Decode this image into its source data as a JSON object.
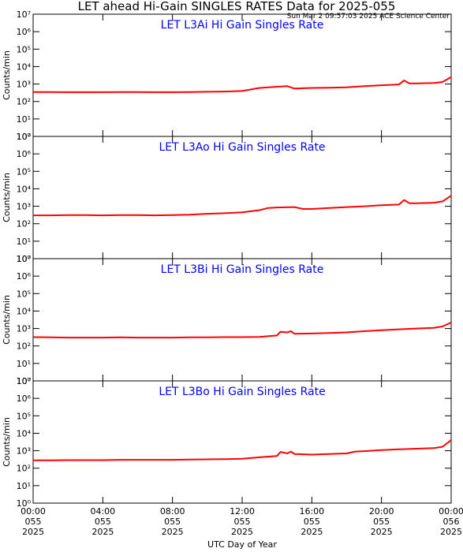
{
  "header": {
    "title": "LET ahead Hi-Gain SINGLES RATES Data for 2025-055",
    "subtitle": "Sun Mar  2 09:57:03 2025 ACE Science Center"
  },
  "chart_data": [
    {
      "type": "line",
      "title": "LET L3Ai Hi Gain Singles Rate",
      "ylabel": "Counts/min",
      "color": "#ff0000",
      "log_y": true,
      "ylim": [
        1,
        10000000
      ],
      "yticks": [
        {
          "value": 1,
          "label": "10⁰"
        },
        {
          "value": 10,
          "label": "10¹"
        },
        {
          "value": 100,
          "label": "10²"
        },
        {
          "value": 1000,
          "label": "10³"
        },
        {
          "value": 10000,
          "label": "10⁴"
        },
        {
          "value": 100000,
          "label": "10⁵"
        },
        {
          "value": 1000000,
          "label": "10⁶"
        },
        {
          "value": 10000000,
          "label": "10⁷"
        }
      ],
      "x": [
        0,
        1,
        2,
        3,
        4,
        5,
        6,
        7,
        8,
        9,
        10,
        11,
        12,
        13,
        14,
        14.6,
        15,
        16,
        17,
        18,
        19,
        20,
        21,
        21.3,
        21.6,
        22,
        23,
        23.5,
        24
      ],
      "values": [
        350,
        350,
        340,
        340,
        340,
        350,
        350,
        340,
        340,
        350,
        360,
        370,
        400,
        600,
        700,
        750,
        550,
        600,
        620,
        650,
        750,
        850,
        950,
        1600,
        1100,
        1100,
        1150,
        1300,
        2500
      ]
    },
    {
      "type": "line",
      "title": "LET L3Ao Hi Gain Singles Rate",
      "ylabel": "Counts/min",
      "color": "#ff0000",
      "log_y": true,
      "ylim": [
        1,
        10000000
      ],
      "yticks": [
        {
          "value": 1,
          "label": "10⁰"
        },
        {
          "value": 10,
          "label": "10¹"
        },
        {
          "value": 100,
          "label": "10²"
        },
        {
          "value": 1000,
          "label": "10³"
        },
        {
          "value": 10000,
          "label": "10⁴"
        },
        {
          "value": 100000,
          "label": "10⁵"
        },
        {
          "value": 1000000,
          "label": "10⁶"
        },
        {
          "value": 10000000,
          "label": "10⁷"
        }
      ],
      "x": [
        0,
        1,
        2,
        3,
        4,
        5,
        6,
        7,
        8,
        9,
        10,
        11,
        12,
        13,
        13.5,
        14,
        15,
        15.5,
        16,
        17,
        18,
        19,
        20,
        21,
        21.3,
        21.6,
        22,
        23,
        23.5,
        24
      ],
      "values": [
        300,
        300,
        310,
        310,
        300,
        310,
        310,
        300,
        310,
        330,
        370,
        400,
        450,
        600,
        800,
        850,
        900,
        700,
        700,
        800,
        900,
        1000,
        1150,
        1250,
        2300,
        1500,
        1500,
        1600,
        1900,
        4000
      ]
    },
    {
      "type": "line",
      "title": "LET L3Bi Hi Gain Singles Rate",
      "ylabel": "Counts/min",
      "color": "#ff0000",
      "log_y": true,
      "ylim": [
        1,
        10000000
      ],
      "yticks": [
        {
          "value": 1,
          "label": "10⁰"
        },
        {
          "value": 10,
          "label": "10¹"
        },
        {
          "value": 100,
          "label": "10²"
        },
        {
          "value": 1000,
          "label": "10³"
        },
        {
          "value": 10000,
          "label": "10⁴"
        },
        {
          "value": 100000,
          "label": "10⁵"
        },
        {
          "value": 1000000,
          "label": "10⁶"
        },
        {
          "value": 10000000,
          "label": "10⁷"
        }
      ],
      "x": [
        0,
        1,
        2,
        3,
        4,
        5,
        6,
        7,
        8,
        9,
        10,
        11,
        12,
        13,
        14,
        14.2,
        14.6,
        14.8,
        15,
        16,
        17,
        18,
        19,
        20,
        21,
        22,
        23,
        23.5,
        24
      ],
      "values": [
        320,
        310,
        300,
        300,
        300,
        310,
        300,
        300,
        300,
        310,
        310,
        320,
        320,
        330,
        400,
        650,
        600,
        700,
        500,
        520,
        550,
        600,
        700,
        800,
        900,
        1000,
        1100,
        1300,
        2200
      ]
    },
    {
      "type": "line",
      "title": "LET L3Bo Hi Gain Singles Rate",
      "ylabel": "Counts/min",
      "color": "#ff0000",
      "log_y": true,
      "ylim": [
        1,
        10000000
      ],
      "yticks": [
        {
          "value": 1,
          "label": "10⁰"
        },
        {
          "value": 10,
          "label": "10¹"
        },
        {
          "value": 100,
          "label": "10²"
        },
        {
          "value": 1000,
          "label": "10³"
        },
        {
          "value": 10000,
          "label": "10⁴"
        },
        {
          "value": 100000,
          "label": "10⁵"
        },
        {
          "value": 1000000,
          "label": "10⁶"
        },
        {
          "value": 10000000,
          "label": "10⁷"
        }
      ],
      "x": [
        0,
        1,
        2,
        3,
        4,
        5,
        6,
        7,
        8,
        9,
        10,
        11,
        12,
        13,
        14,
        14.2,
        14.6,
        14.8,
        15,
        16,
        17,
        18,
        18.5,
        19,
        20,
        21,
        22,
        23,
        23.5,
        24
      ],
      "values": [
        280,
        280,
        290,
        290,
        290,
        300,
        300,
        300,
        300,
        310,
        320,
        330,
        350,
        420,
        500,
        850,
        700,
        900,
        650,
        600,
        650,
        700,
        900,
        950,
        1100,
        1200,
        1300,
        1400,
        1700,
        4000
      ],
      "xlabel": "UTC Day of Year",
      "xlim": [
        0,
        24
      ],
      "xticks": [
        {
          "value": 0,
          "label": "00:00\n055\n2025"
        },
        {
          "value": 4,
          "label": "04:00\n055\n2025"
        },
        {
          "value": 8,
          "label": "08:00\n055\n2025"
        },
        {
          "value": 12,
          "label": "12:00\n055\n2025"
        },
        {
          "value": 16,
          "label": "16:00\n055\n2025"
        },
        {
          "value": 20,
          "label": "20:00\n055\n2025"
        },
        {
          "value": 24,
          "label": "00:00\n056\n2025"
        }
      ]
    }
  ]
}
